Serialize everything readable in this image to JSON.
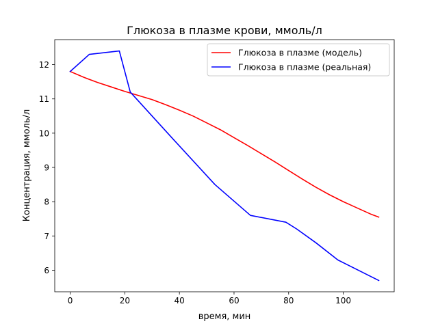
{
  "chart_data": {
    "type": "line",
    "title": "Глюкоза в плазме крови, ммоль/л",
    "xlabel": "время, мин",
    "ylabel": "Концентрация, ммоль/л",
    "xlim": [
      -5.65,
      118.65
    ],
    "ylim": [
      5.37,
      12.73
    ],
    "xticks": [
      0,
      20,
      40,
      60,
      80,
      100
    ],
    "yticks": [
      6,
      7,
      8,
      9,
      10,
      11,
      12
    ],
    "grid": false,
    "legend_position": "top-right",
    "series": [
      {
        "name": "Глюкоза в плазме (модель)",
        "color": "#ff0000",
        "x": [
          0,
          5,
          10,
          15,
          20,
          25,
          30,
          35,
          40,
          45,
          50,
          55,
          60,
          65,
          70,
          75,
          80,
          85,
          90,
          95,
          100,
          105,
          110,
          113
        ],
        "y": [
          11.8,
          11.63,
          11.48,
          11.35,
          11.22,
          11.1,
          10.98,
          10.83,
          10.67,
          10.5,
          10.3,
          10.1,
          9.87,
          9.64,
          9.4,
          9.16,
          8.91,
          8.66,
          8.42,
          8.2,
          8.0,
          7.82,
          7.64,
          7.55
        ]
      },
      {
        "name": "Глюкоза в плазме (реальная)",
        "color": "#0000ff",
        "x": [
          0,
          7,
          18,
          22,
          38,
          53,
          66,
          79,
          83,
          90,
          98,
          113
        ],
        "y": [
          11.8,
          12.3,
          12.4,
          11.2,
          9.8,
          8.5,
          7.6,
          7.4,
          7.2,
          6.8,
          6.3,
          5.7
        ]
      }
    ]
  }
}
